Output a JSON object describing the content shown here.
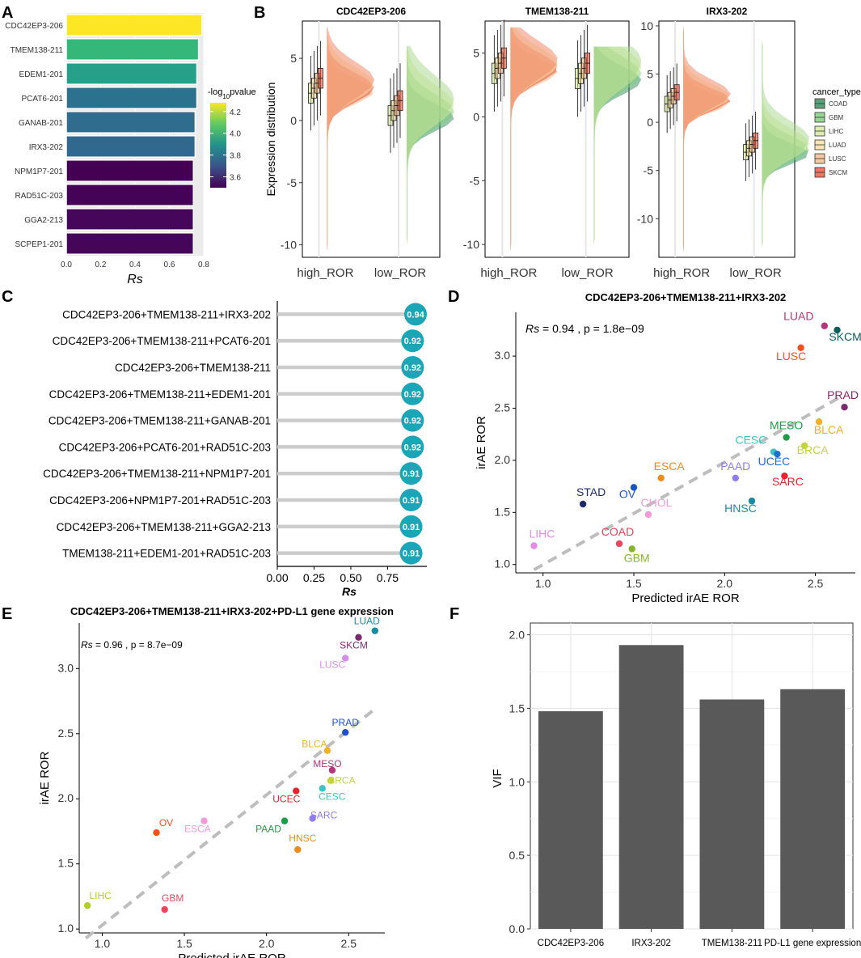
{
  "panel_letters": {
    "a": "A",
    "b": "B",
    "c": "C",
    "d": "D",
    "e": "E",
    "f": "F"
  },
  "colors": {
    "panel_bg": "#ebebeb",
    "grid": "#ffffff",
    "lollipop": "#1aa6b7",
    "bar_dark": "#595959",
    "dashed": "#bdbdbd"
  },
  "chart_data": [
    {
      "id": "A",
      "type": "bar",
      "orientation": "horizontal",
      "xlabel": "Rs",
      "ylabel": "",
      "xlim": [
        0,
        0.8
      ],
      "xticks": [
        "0.0",
        "0.2",
        "0.4",
        "0.6",
        "0.8"
      ],
      "categories": [
        "CDC42EP3-206",
        "TMEM138-211",
        "EDEM1-201",
        "PCAT6-201",
        "GANAB-201",
        "IRX3-202",
        "NPM1P7-201",
        "RAD51C-203",
        "GGA2-213",
        "SCPEP1-201"
      ],
      "values": [
        0.79,
        0.77,
        0.76,
        0.76,
        0.75,
        0.75,
        0.74,
        0.74,
        0.74,
        0.74
      ],
      "colors": [
        "#fde725",
        "#35b779",
        "#27a08a",
        "#2c728e",
        "#2f6c8e",
        "#31688e",
        "#440154",
        "#440357",
        "#46075a",
        "#450559"
      ],
      "legend": {
        "title_prefix": "-log",
        "title_sub": "10",
        "title_suffix": "pvalue",
        "ticks": [
          "4.2",
          "4.0",
          "3.8",
          "3.6"
        ]
      }
    },
    {
      "id": "B",
      "type": "violin",
      "ylabel": "Expression distribution",
      "groups": [
        "high_ROR",
        "low_ROR"
      ],
      "legend": {
        "title": "cancer_type",
        "items": [
          "COAD",
          "GBM",
          "LIHC",
          "LUAD",
          "LUSC",
          "SKCM"
        ],
        "colors": [
          "#2e8b57",
          "#7ccd7c",
          "#d4e89a",
          "#f7dfa0",
          "#f5b98a",
          "#e8543b"
        ]
      },
      "facets": [
        {
          "title": "CDC42EP3-206",
          "ylim": [
            -11,
            8
          ],
          "yticks": [
            "5",
            "0",
            "-5",
            "-10"
          ],
          "high_median": 2.8,
          "low_median": 1.0
        },
        {
          "title": "TMEM138-211",
          "ylim": [
            -11,
            7.5
          ],
          "yticks": [
            "5",
            "0",
            "-5",
            "-10"
          ],
          "high_median": 4.0,
          "low_median": 3.6
        },
        {
          "title": "IRX3-202",
          "ylim": [
            -14,
            10.5
          ],
          "yticks": [
            "10",
            "5",
            "0",
            "-5",
            "-10"
          ],
          "high_median": 2.5,
          "low_median": -2.5
        }
      ]
    },
    {
      "id": "C",
      "type": "lollipop",
      "xlabel": "Rs",
      "xlim": [
        0,
        0.94
      ],
      "xticks": [
        "0.00",
        "0.25",
        "0.50",
        "0.75"
      ],
      "categories": [
        "CDC42EP3-206+TMEM138-211+IRX3-202",
        "CDC42EP3-206+TMEM138-211+PCAT6-201",
        "CDC42EP3-206+TMEM138-211",
        "CDC42EP3-206+TMEM138-211+EDEM1-201",
        "CDC42EP3-206+TMEM138-211+GANAB-201",
        "CDC42EP3-206+PCAT6-201+RAD51C-203",
        "CDC42EP3-206+TMEM138-211+NPM1P7-201",
        "CDC42EP3-206+NPM1P7-201+RAD51C-203",
        "CDC42EP3-206+TMEM138-211+GGA2-213",
        "TMEM138-211+EDEM1-201+RAD51C-203"
      ],
      "values": [
        0.94,
        0.92,
        0.92,
        0.92,
        0.92,
        0.92,
        0.91,
        0.91,
        0.91,
        0.91
      ],
      "labels": [
        "0.94",
        "0.92",
        "0.92",
        "0.92",
        "0.92",
        "0.92",
        "0.91",
        "0.91",
        "0.91",
        "0.91"
      ]
    },
    {
      "id": "D",
      "type": "scatter",
      "title": "CDC42EP3-206+TMEM138-211+IRX3-202",
      "xlabel": "Predicted irAE ROR",
      "ylabel": "irAE ROR",
      "xlim": [
        0.85,
        2.72
      ],
      "ylim": [
        0.92,
        3.42
      ],
      "xticks": [
        "1.0",
        "1.5",
        "2.0",
        "2.5"
      ],
      "yticks": [
        "1.0",
        "1.5",
        "2.0",
        "2.5",
        "3.0"
      ],
      "annotation": {
        "stat": "Rs",
        "rest": " = 0.94 , p = 1.8e−09"
      },
      "trend": [
        [
          0.95,
          0.95
        ],
        [
          2.65,
          2.62
        ]
      ],
      "points": [
        {
          "label": "LUAD",
          "x": 2.55,
          "y": 3.29,
          "color": "#b5367c",
          "lx": -32,
          "ly": -7
        },
        {
          "label": "SKCM",
          "x": 2.62,
          "y": 3.25,
          "color": "#0e5c5c",
          "lx": 10,
          "ly": 13
        },
        {
          "label": "LUSC",
          "x": 2.42,
          "y": 3.08,
          "color": "#f4511e",
          "lx": -12,
          "ly": 15
        },
        {
          "label": "PRAD",
          "x": 2.66,
          "y": 2.51,
          "color": "#7b2a6e",
          "lx": -2,
          "ly": -10
        },
        {
          "label": "BLCA",
          "x": 2.52,
          "y": 2.37,
          "color": "#f2b123",
          "lx": 12,
          "ly": 15
        },
        {
          "label": "MESO",
          "x": 2.34,
          "y": 2.22,
          "color": "#1b9e45",
          "lx": 0,
          "ly": -10
        },
        {
          "label": "BRCA",
          "x": 2.44,
          "y": 2.14,
          "color": "#c3d43e",
          "lx": 10,
          "ly": 10
        },
        {
          "label": "CESC",
          "x": 2.27,
          "y": 2.08,
          "color": "#3cc4c4",
          "lx": -28,
          "ly": -10
        },
        {
          "label": "UCEC",
          "x": 2.29,
          "y": 2.06,
          "color": "#1f6fd1",
          "lx": -4,
          "ly": 14
        },
        {
          "label": "PAAD",
          "x": 2.06,
          "y": 1.83,
          "color": "#8e7cf0",
          "lx": 0,
          "ly": -10
        },
        {
          "label": "SARC",
          "x": 2.33,
          "y": 1.85,
          "color": "#e8222f",
          "lx": 4,
          "ly": 12
        },
        {
          "label": "HNSC",
          "x": 2.15,
          "y": 1.61,
          "color": "#1a8aa3",
          "lx": -14,
          "ly": 14
        },
        {
          "label": "ESCA",
          "x": 1.65,
          "y": 1.83,
          "color": "#ee8c1a",
          "lx": 10,
          "ly": -10
        },
        {
          "label": "STAD",
          "x": 1.22,
          "y": 1.58,
          "color": "#1d2b6b",
          "lx": 10,
          "ly": -10
        },
        {
          "label": "OV",
          "x": 1.5,
          "y": 1.74,
          "color": "#1a54c9",
          "lx": -8,
          "ly": 13
        },
        {
          "label": "CHOL",
          "x": 1.58,
          "y": 1.48,
          "color": "#f29ad8",
          "lx": 10,
          "ly": -10
        },
        {
          "label": "COAD",
          "x": 1.42,
          "y": 1.2,
          "color": "#e8465b",
          "lx": -2,
          "ly": -10
        },
        {
          "label": "GBM",
          "x": 1.49,
          "y": 1.15,
          "color": "#86b52a",
          "lx": 6,
          "ly": 16
        },
        {
          "label": "LIHC",
          "x": 0.95,
          "y": 1.18,
          "color": "#e58ae8",
          "lx": 10,
          "ly": -10
        }
      ]
    },
    {
      "id": "E",
      "type": "scatter",
      "title": "CDC42EP3-206+TMEM138-211+IRX3-202+PD-L1 gene expression",
      "xlabel": "Predicted irAE ROR",
      "ylabel": "irAE ROR",
      "xlim": [
        0.86,
        2.72
      ],
      "ylim": [
        0.97,
        3.35
      ],
      "xticks": [
        "1.0",
        "1.5",
        "2.0",
        "2.5"
      ],
      "yticks": [
        "1.0",
        "1.5",
        "2.0",
        "2.5",
        "3.0"
      ],
      "annotation": {
        "stat": "Rs",
        "rest": " = 0.96 , p = 8.7e−09"
      },
      "trend": [
        [
          0.9,
          0.93
        ],
        [
          2.65,
          2.68
        ]
      ],
      "points": [
        {
          "label": "LUAD",
          "x": 2.66,
          "y": 3.29,
          "color": "#1a8aa3",
          "lx": -10,
          "ly": -8
        },
        {
          "label": "SKCM",
          "x": 2.56,
          "y": 3.24,
          "color": "#7b2a6e",
          "lx": -6,
          "ly": 14
        },
        {
          "label": "LUSC",
          "x": 2.48,
          "y": 3.08,
          "color": "#d58ee8",
          "lx": -16,
          "ly": 12
        },
        {
          "label": "PRAD",
          "x": 2.48,
          "y": 2.51,
          "color": "#1f4fd1",
          "lx": 0,
          "ly": -8
        },
        {
          "label": "BLCA",
          "x": 2.37,
          "y": 2.37,
          "color": "#f2b123",
          "lx": -16,
          "ly": -4
        },
        {
          "label": "MESO",
          "x": 2.4,
          "y": 2.22,
          "color": "#b5367c",
          "lx": -6,
          "ly": -4
        },
        {
          "label": "BRCA",
          "x": 2.39,
          "y": 2.14,
          "color": "#c3d43e",
          "lx": 14,
          "ly": 4
        },
        {
          "label": "CESC",
          "x": 2.34,
          "y": 2.08,
          "color": "#3cc4c4",
          "lx": 12,
          "ly": 14
        },
        {
          "label": "UCEC",
          "x": 2.18,
          "y": 2.06,
          "color": "#e8222f",
          "lx": -12,
          "ly": 14
        },
        {
          "label": "PAAD",
          "x": 2.11,
          "y": 1.83,
          "color": "#1b9e45",
          "lx": -20,
          "ly": 14
        },
        {
          "label": "SARC",
          "x": 2.28,
          "y": 1.85,
          "color": "#8e7cf0",
          "lx": 14,
          "ly": 0
        },
        {
          "label": "HNSC",
          "x": 2.19,
          "y": 1.61,
          "color": "#ee8c1a",
          "lx": 6,
          "ly": -10
        },
        {
          "label": "ESCA",
          "x": 1.62,
          "y": 1.83,
          "color": "#f29ad8",
          "lx": -8,
          "ly": 14
        },
        {
          "label": "OV",
          "x": 1.33,
          "y": 1.74,
          "color": "#f4511e",
          "lx": 12,
          "ly": -8
        },
        {
          "label": "GBM",
          "x": 1.38,
          "y": 1.15,
          "color": "#e8465b",
          "lx": 10,
          "ly": -10
        },
        {
          "label": "LIHC",
          "x": 0.91,
          "y": 1.18,
          "color": "#b5cd2a",
          "lx": 16,
          "ly": -8
        }
      ]
    },
    {
      "id": "F",
      "type": "bar",
      "xlabel": "",
      "ylabel": "VIF",
      "ylim": [
        0,
        2.0
      ],
      "yticks": [
        "0.0",
        "0.5",
        "1.0",
        "1.5",
        "2.0"
      ],
      "categories": [
        "CDC42EP3-206",
        "IRX3-202",
        "TMEM138-211",
        "PD-L1 gene expression"
      ],
      "values": [
        1.48,
        1.93,
        1.56,
        1.63
      ]
    }
  ]
}
